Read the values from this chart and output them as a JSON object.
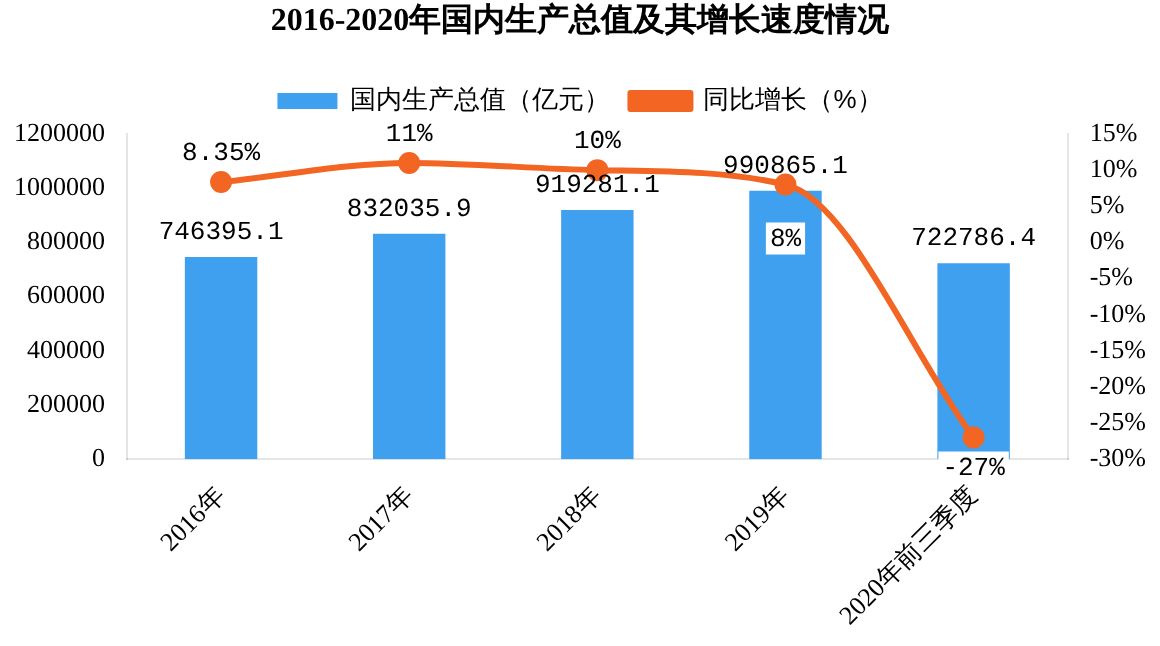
{
  "chart_data": {
    "type": "bar",
    "title": "2016-2020年国内生产总值及其增长速度情况",
    "categories": [
      "2016年",
      "2017年",
      "2018年",
      "2019年",
      "2020年前三季度"
    ],
    "series": [
      {
        "name": "国内生产总值（亿元）",
        "color": "#3fa0f0",
        "values": [
          746395.1,
          832035.9,
          919281.1,
          990865.1,
          722786.4
        ],
        "value_labels": [
          "746395.1",
          "832035.9",
          "919281.1",
          "990865.1",
          "722786.4"
        ]
      },
      {
        "name": "同比增长（%）",
        "type": "line",
        "axis": "y2",
        "color": "#f26522",
        "values": [
          8.35,
          11,
          10,
          8,
          -27
        ],
        "value_labels": [
          "8.35%",
          "11%",
          "10%",
          "8%",
          "-27%"
        ]
      }
    ],
    "ylim": [
      0,
      1200000
    ],
    "yticks": [
      0,
      200000,
      400000,
      600000,
      800000,
      1000000,
      1200000
    ],
    "y2lim": [
      -30,
      15
    ],
    "y2ticks": [
      {
        "value": -30,
        "label": "-30%"
      },
      {
        "value": -25,
        "label": "-25%"
      },
      {
        "value": -20,
        "label": "-20%"
      },
      {
        "value": -15,
        "label": "-15%"
      },
      {
        "value": -10,
        "label": "-10%"
      },
      {
        "value": -5,
        "label": "-5%"
      },
      {
        "value": 0,
        "label": "0%"
      },
      {
        "value": 5,
        "label": "5%"
      },
      {
        "value": 10,
        "label": "10%"
      },
      {
        "value": 15,
        "label": "15%"
      }
    ],
    "grid": false,
    "legend": "top",
    "marker": "circle"
  }
}
